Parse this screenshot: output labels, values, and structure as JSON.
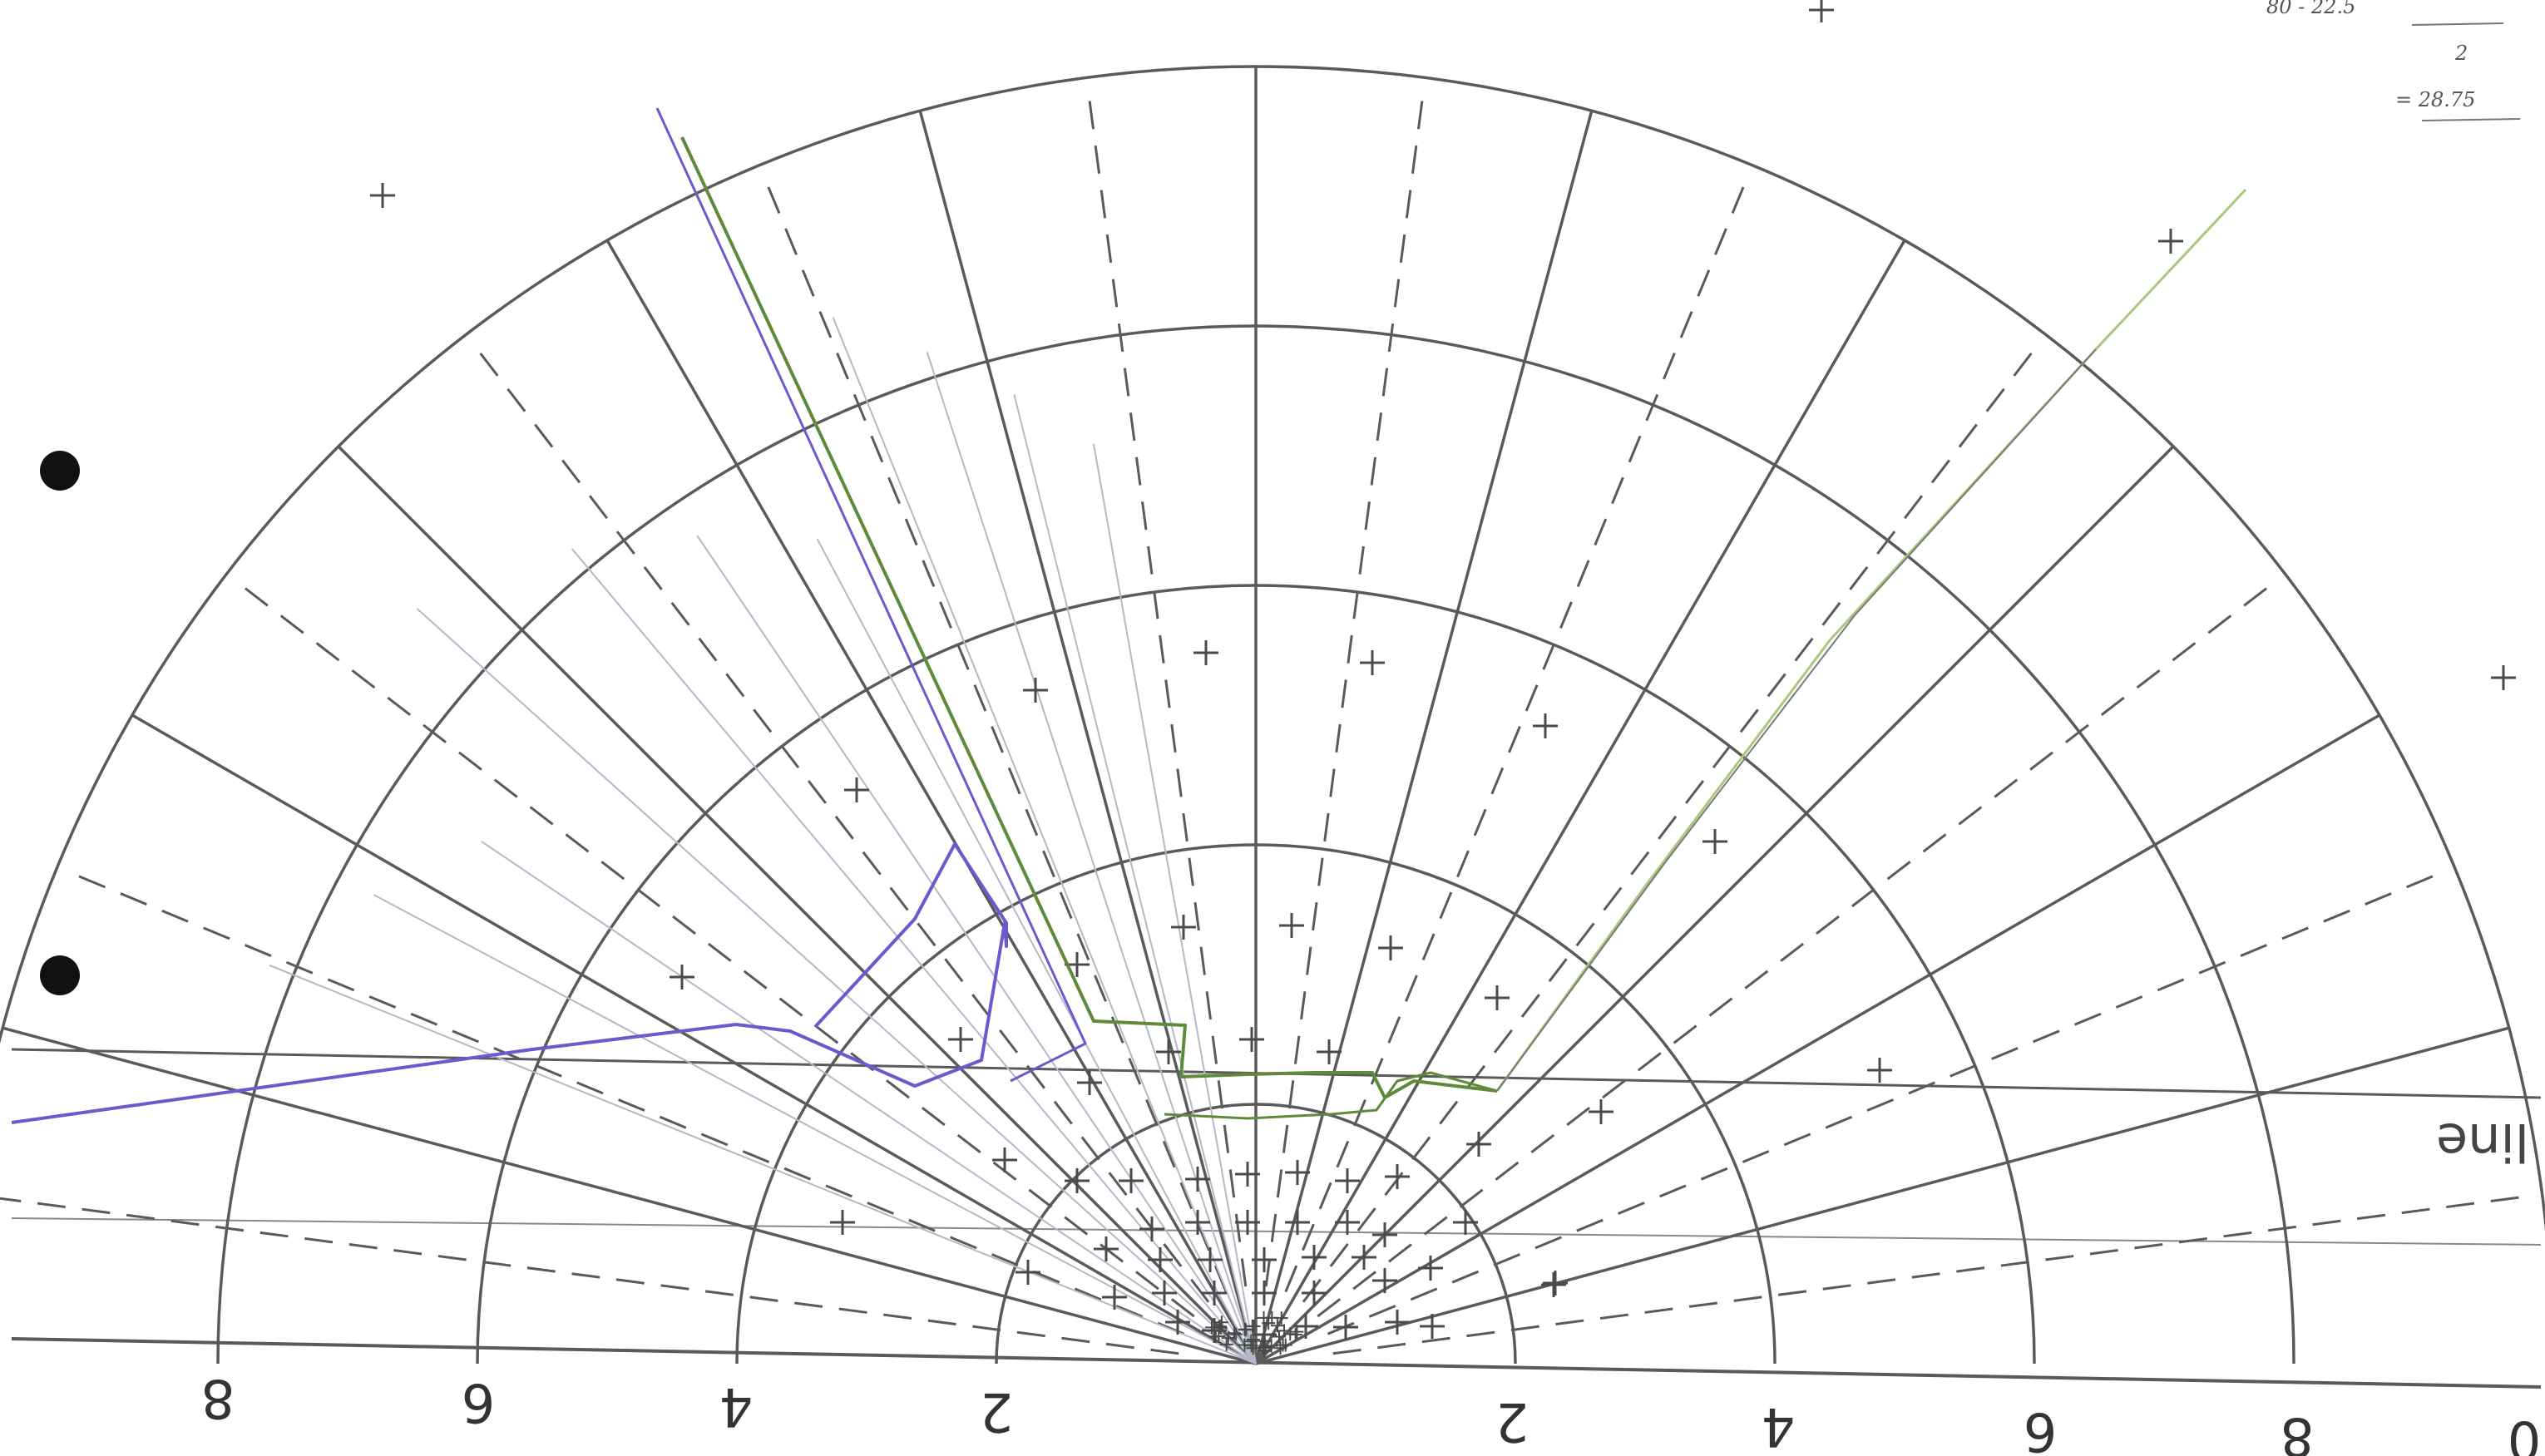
{
  "scale_labels": [
    "8",
    "6",
    "4",
    "2",
    "2",
    "4",
    "6",
    "8",
    "0"
  ],
  "line_label": "line",
  "handwritten_note": {
    "line1": "80 - 22.5",
    "line2": "2",
    "line3": "= 28.75"
  },
  "colors": {
    "grid": "#5a5a5a",
    "purple": "#6a5acd",
    "green": "#5f8a3a",
    "light_green": "#a8c97a",
    "faint": "#9aa0b0",
    "hole": "#111111"
  }
}
